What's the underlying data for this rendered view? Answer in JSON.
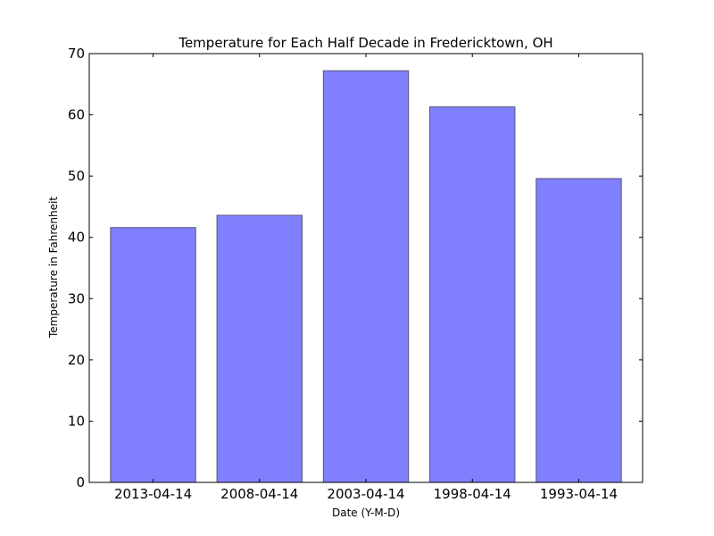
{
  "chart_data": {
    "type": "bar",
    "title": "Temperature for Each Half Decade in Fredericktown, OH",
    "xlabel": "Date (Y-M-D)",
    "ylabel": "Temperature in Fahrenheit",
    "categories": [
      "2013-04-14",
      "2008-04-14",
      "2003-04-14",
      "1998-04-14",
      "1993-04-14"
    ],
    "values": [
      41.6,
      43.6,
      67.2,
      61.3,
      49.6
    ],
    "ylim": [
      0,
      70
    ],
    "yticks": [
      "0",
      "10",
      "20",
      "30",
      "40",
      "50",
      "60",
      "70"
    ],
    "grid": false,
    "legend": "none",
    "colors": {
      "bar_fill": "#8080ff",
      "bar_stroke": "#555577",
      "axis": "#000000"
    }
  }
}
